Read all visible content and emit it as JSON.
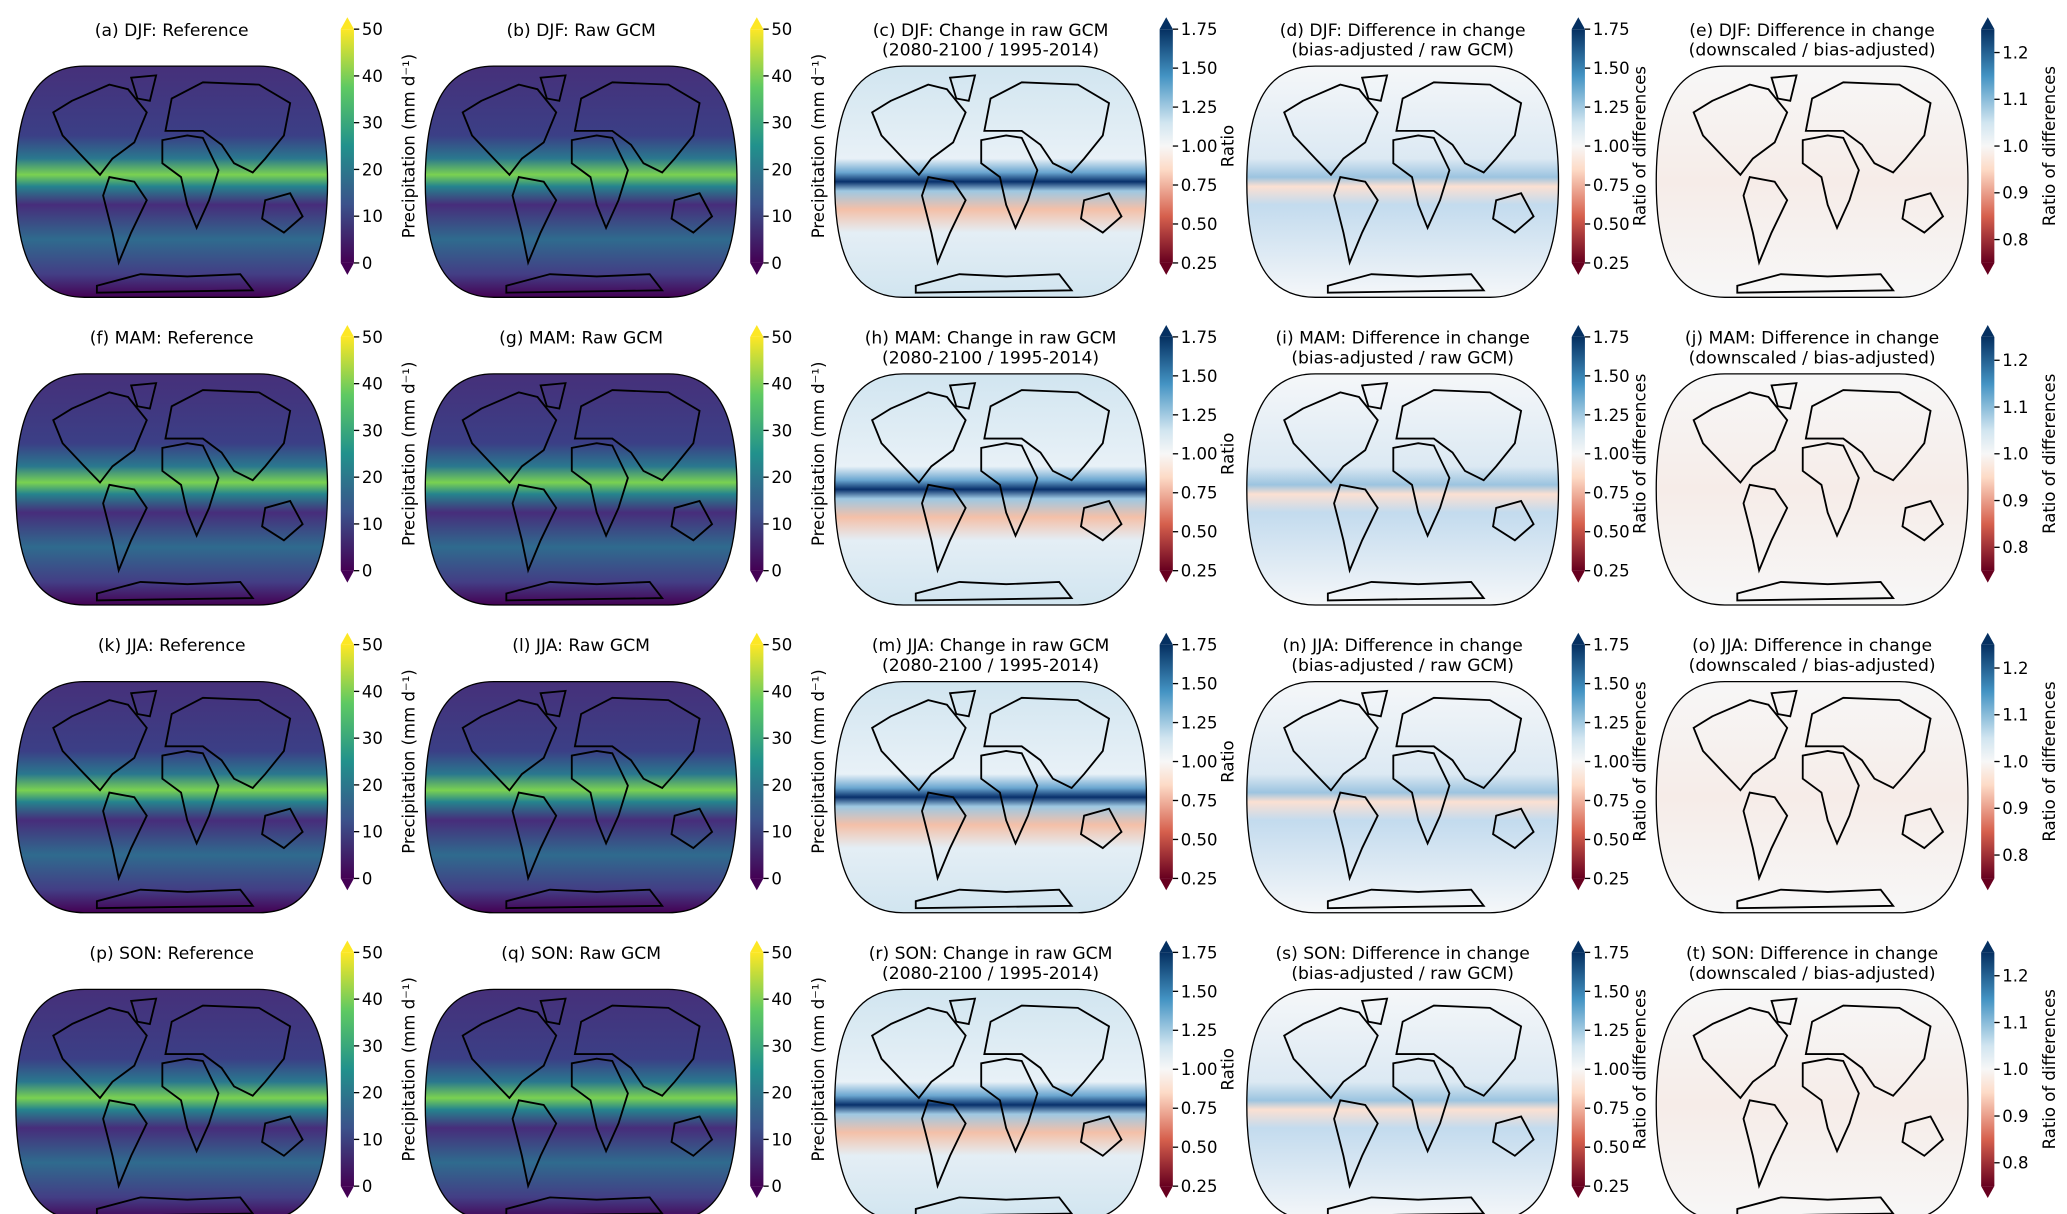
{
  "colorbars": {
    "precip": {
      "cmap": "viridis",
      "ticks": [
        "0",
        "10",
        "20",
        "30",
        "40",
        "50"
      ],
      "range": [
        0,
        50
      ],
      "label": "Precipitation (mm d⁻¹)",
      "extend": "both"
    },
    "ratio": {
      "cmap": "RdBu",
      "ticks": [
        "0.25",
        "0.50",
        "0.75",
        "1.00",
        "1.25",
        "1.50",
        "1.75"
      ],
      "range": [
        0.25,
        1.75
      ],
      "label": "Ratio",
      "extend": "both"
    },
    "ratio_diff": {
      "cmap": "RdBu",
      "ticks": [
        "0.25",
        "0.50",
        "0.75",
        "1.00",
        "1.25",
        "1.50",
        "1.75"
      ],
      "range": [
        0.25,
        1.75
      ],
      "label": "Ratio of differences",
      "extend": "both"
    },
    "ratio_diff_small": {
      "cmap": "RdBu",
      "ticks": [
        "0.8",
        "0.9",
        "1.0",
        "1.1",
        "1.2"
      ],
      "tick_values": [
        0.8,
        0.9,
        1.0,
        1.1,
        1.2
      ],
      "range": [
        0.75,
        1.25
      ],
      "label": "Ratio of differences",
      "extend": "both"
    }
  },
  "colors": {
    "viridis": [
      "#440154",
      "#3b528b",
      "#21918c",
      "#5ec962",
      "#fde725"
    ],
    "rdbu": [
      "#67001f",
      "#d6604d",
      "#f7f7f7",
      "#4393c3",
      "#053061"
    ]
  },
  "rows": [
    {
      "season": "DJF",
      "panels": [
        {
          "title": [
            "(a) DJF: Reference"
          ],
          "colorbar": "precip"
        },
        {
          "title": [
            "(b) DJF: Raw GCM"
          ],
          "colorbar": "precip"
        },
        {
          "title": [
            "(c) DJF: Change in raw GCM",
            "(2080-2100 / 1995-2014)"
          ],
          "colorbar": "ratio"
        },
        {
          "title": [
            "(d) DJF: Difference in change",
            "(bias-adjusted / raw GCM)"
          ],
          "colorbar": "ratio_diff"
        },
        {
          "title": [
            "(e) DJF: Difference in change",
            "(downscaled / bias-adjusted)"
          ],
          "colorbar": "ratio_diff_small"
        }
      ]
    },
    {
      "season": "MAM",
      "panels": [
        {
          "title": [
            "(f) MAM: Reference"
          ],
          "colorbar": "precip"
        },
        {
          "title": [
            "(g) MAM: Raw GCM"
          ],
          "colorbar": "precip"
        },
        {
          "title": [
            "(h) MAM: Change in raw GCM",
            "(2080-2100 / 1995-2014)"
          ],
          "colorbar": "ratio"
        },
        {
          "title": [
            "(i) MAM: Difference in change",
            "(bias-adjusted / raw GCM)"
          ],
          "colorbar": "ratio_diff"
        },
        {
          "title": [
            "(j) MAM: Difference in change",
            "(downscaled / bias-adjusted)"
          ],
          "colorbar": "ratio_diff_small"
        }
      ]
    },
    {
      "season": "JJA",
      "panels": [
        {
          "title": [
            "(k) JJA: Reference"
          ],
          "colorbar": "precip"
        },
        {
          "title": [
            "(l) JJA: Raw GCM"
          ],
          "colorbar": "precip"
        },
        {
          "title": [
            "(m) JJA: Change in raw GCM",
            "(2080-2100 / 1995-2014)"
          ],
          "colorbar": "ratio"
        },
        {
          "title": [
            "(n) JJA: Difference in change",
            "(bias-adjusted / raw GCM)"
          ],
          "colorbar": "ratio_diff"
        },
        {
          "title": [
            "(o) JJA: Difference in change",
            "(downscaled / bias-adjusted)"
          ],
          "colorbar": "ratio_diff_small"
        }
      ]
    },
    {
      "season": "SON",
      "panels": [
        {
          "title": [
            "(p) SON: Reference"
          ],
          "colorbar": "precip"
        },
        {
          "title": [
            "(q) SON: Raw GCM"
          ],
          "colorbar": "precip"
        },
        {
          "title": [
            "(r) SON: Change in raw GCM",
            "(2080-2100 / 1995-2014)"
          ],
          "colorbar": "ratio"
        },
        {
          "title": [
            "(s) SON: Difference in change",
            "(bias-adjusted / raw GCM)"
          ],
          "colorbar": "ratio_diff"
        },
        {
          "title": [
            "(t) SON: Difference in change",
            "(downscaled / bias-adjusted)"
          ],
          "colorbar": "ratio_diff_small"
        }
      ]
    }
  ]
}
